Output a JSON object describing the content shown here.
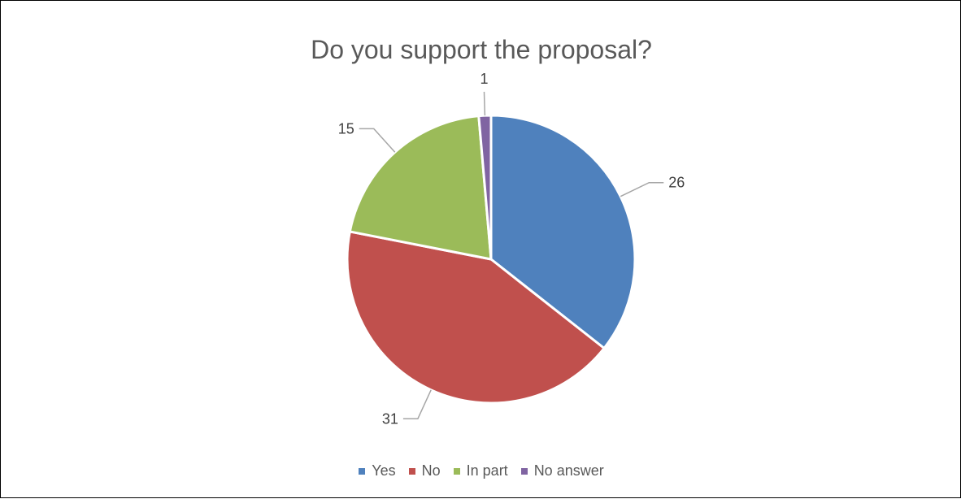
{
  "chart_data": {
    "type": "pie",
    "title": "Do you support the proposal?",
    "categories": [
      "Yes",
      "No",
      "In part",
      "No answer"
    ],
    "values": [
      26,
      31,
      15,
      1
    ],
    "colors": [
      "#4F81BD",
      "#C0504D",
      "#9BBB59",
      "#8064A2"
    ],
    "legend_position": "bottom"
  }
}
